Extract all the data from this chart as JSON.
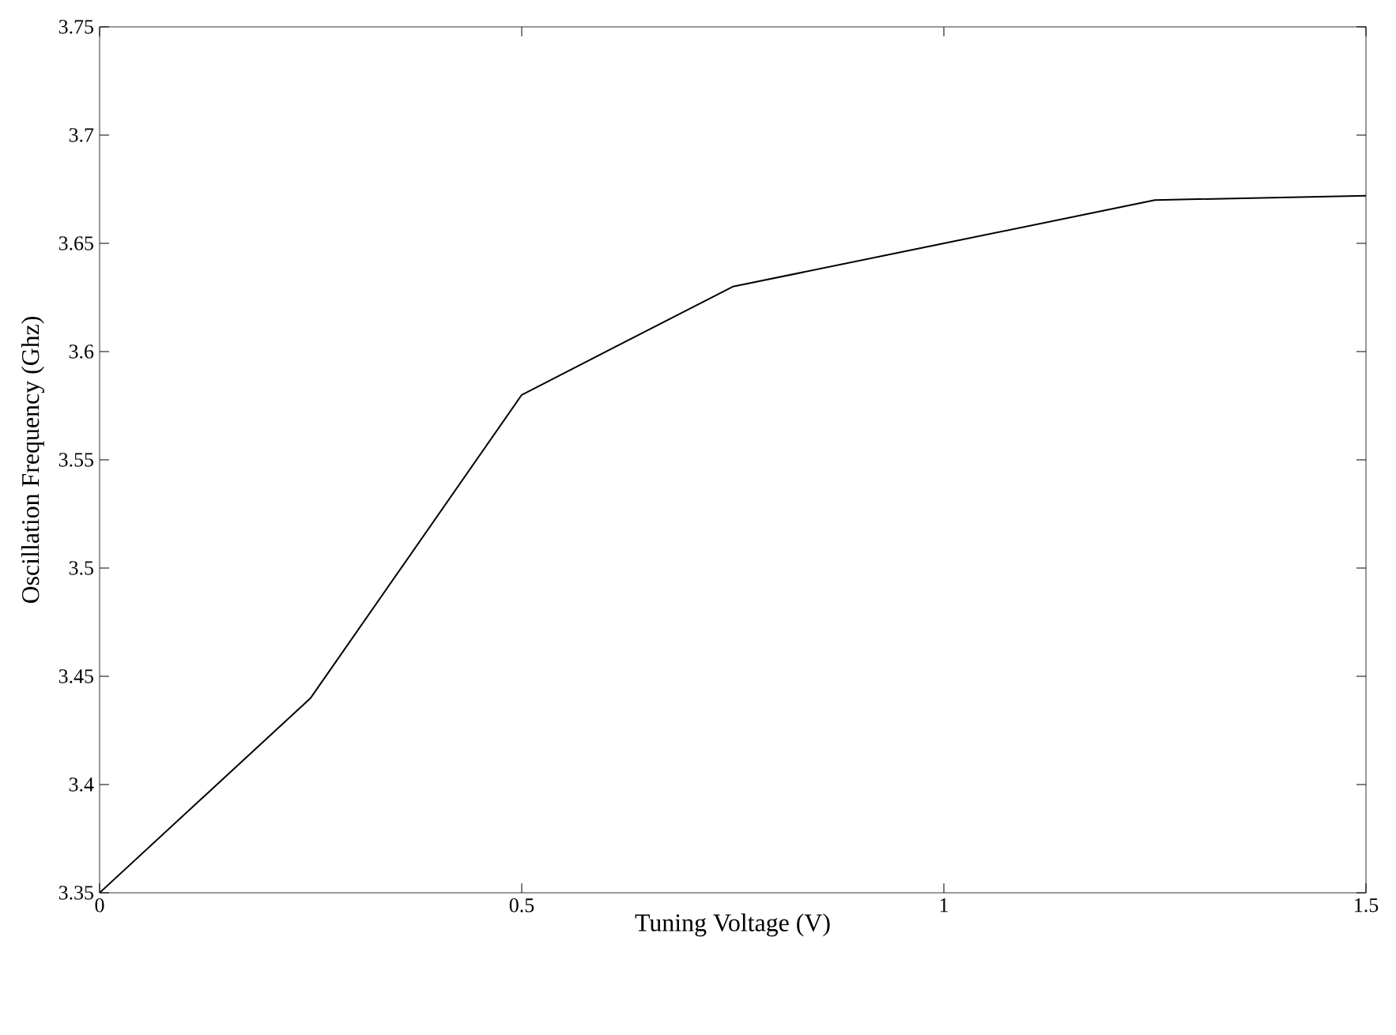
{
  "chart_data": {
    "type": "line",
    "xlabel": "Tuning Voltage (V)",
    "ylabel": "Oscillation Frequency (Ghz)",
    "x": [
      0,
      0.25,
      0.5,
      0.75,
      1,
      1.25,
      1.5
    ],
    "series": [
      {
        "color": "#000000",
        "values": [
          3.35,
          3.44,
          3.58,
          3.63,
          3.65,
          3.67,
          3.672
        ]
      }
    ],
    "xlim": [
      0,
      1.5
    ],
    "ylim": [
      3.35,
      3.75
    ],
    "xticks": [
      0,
      0.5,
      1,
      1.5
    ],
    "yticks": [
      3.35,
      3.4,
      3.45,
      3.5,
      3.55,
      3.6,
      3.65,
      3.7,
      3.75
    ],
    "grid": false,
    "marker": "none",
    "line_style": "solid"
  }
}
